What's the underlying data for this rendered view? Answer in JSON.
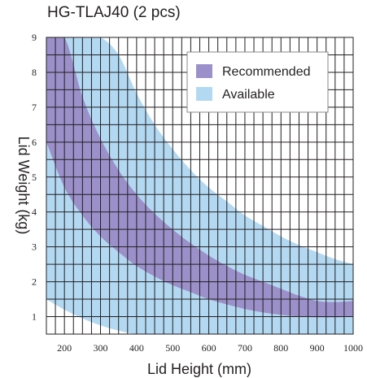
{
  "chart_data": {
    "type": "area",
    "title": "HG-TLAJ40 (2 pcs)",
    "xlabel": "Lid Height (mm)",
    "ylabel": "Lid Weight (kg)",
    "xlim": [
      150,
      1000
    ],
    "ylim": [
      0.5,
      9
    ],
    "x_ticks": [
      200,
      300,
      400,
      500,
      600,
      700,
      800,
      900,
      1000
    ],
    "y_ticks": [
      1,
      2,
      3,
      4,
      5,
      6,
      7,
      8,
      9
    ],
    "grid": true,
    "legend_position": "top-right",
    "x": [
      150,
      200,
      250,
      300,
      350,
      400,
      450,
      500,
      550,
      600,
      650,
      700,
      750,
      800,
      850,
      900,
      950,
      1000
    ],
    "series": [
      {
        "name": "Available",
        "color": "#b3d9f2",
        "lower": [
          1.5,
          1.2,
          0.95,
          0.75,
          0.6,
          0.5,
          0.5,
          0.5,
          0.5,
          0.5,
          0.5,
          0.5,
          0.5,
          0.5,
          0.5,
          0.5,
          0.5,
          0.5
        ],
        "upper": [
          9,
          9,
          9,
          9,
          8.5,
          7.4,
          6.5,
          5.8,
          5.2,
          4.7,
          4.3,
          3.9,
          3.6,
          3.3,
          3.05,
          2.85,
          2.65,
          2.5
        ]
      },
      {
        "name": "Recommended",
        "color": "#9b90c9",
        "lower": [
          6,
          4.7,
          3.9,
          3.3,
          2.85,
          2.45,
          2.15,
          1.9,
          1.7,
          1.5,
          1.35,
          1.22,
          1.12,
          1.05,
          1,
          0.98,
          0.98,
          1
        ],
        "upper": [
          9,
          9,
          7.3,
          6.1,
          5.2,
          4.5,
          3.95,
          3.5,
          3.1,
          2.75,
          2.45,
          2.2,
          2,
          1.8,
          1.6,
          1.45,
          1.42,
          1.45
        ]
      }
    ]
  }
}
